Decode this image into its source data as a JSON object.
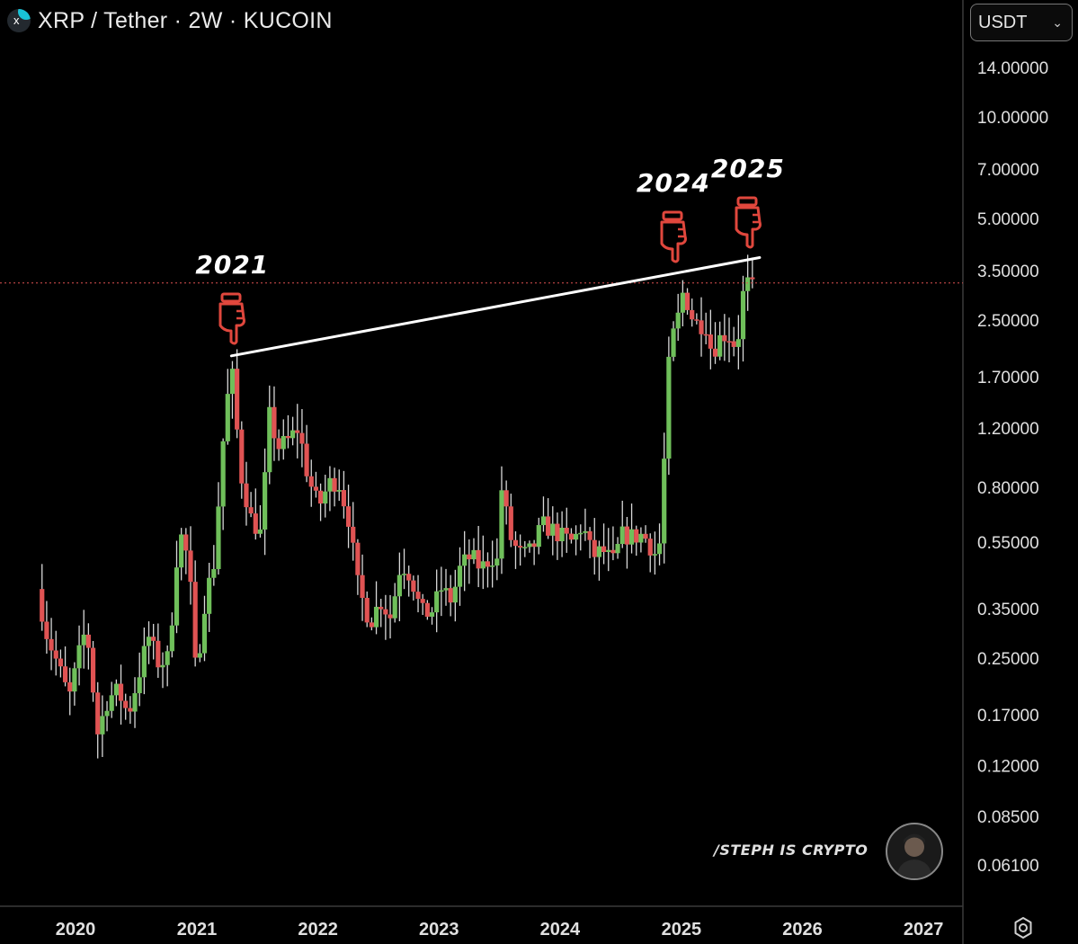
{
  "header": {
    "title": "XRP / Tether · 2W · KUCOIN",
    "currency": "USDT",
    "logo_icon": "xrp-logo-icon"
  },
  "chart_data": {
    "type": "candlestick",
    "symbol": "XRP / Tether",
    "interval": "2W",
    "exchange": "KUCOIN",
    "y_scale": "log",
    "ylim": [
      0.05,
      17.0
    ],
    "xlim": [
      "2019-09-15",
      "2027-06-01"
    ],
    "price_tick_labels": [
      "14.00000",
      "10.00000",
      "7.00000",
      "5.00000",
      "3.50000",
      "2.50000",
      "1.70000",
      "1.20000",
      "0.80000",
      "0.55000",
      "0.35000",
      "0.25000",
      "0.17000",
      "0.12000",
      "0.08500",
      "0.06100"
    ],
    "price_ticks": [
      14.0,
      10.0,
      7.0,
      5.0,
      3.5,
      2.5,
      1.7,
      1.2,
      0.8,
      0.55,
      0.35,
      0.25,
      0.17,
      0.12,
      0.085,
      0.061
    ],
    "time_ticks": [
      {
        "label": "2020",
        "date": "2020-01-01"
      },
      {
        "label": "2021",
        "date": "2021-01-01"
      },
      {
        "label": "2022",
        "date": "2022-01-01"
      },
      {
        "label": "2023",
        "date": "2023-01-01"
      },
      {
        "label": "2024",
        "date": "2024-01-01"
      },
      {
        "label": "2025",
        "date": "2025-01-01"
      },
      {
        "label": "2026",
        "date": "2026-01-01"
      },
      {
        "label": "2027",
        "date": "2027-01-01"
      }
    ],
    "anchor_closes": [
      [
        "2019-09-15",
        0.4
      ],
      [
        "2019-10-15",
        0.29
      ],
      [
        "2019-11-15",
        0.24
      ],
      [
        "2019-12-20",
        0.19
      ],
      [
        "2020-01-20",
        0.26
      ],
      [
        "2020-02-10",
        0.31
      ],
      [
        "2020-03-15",
        0.15
      ],
      [
        "2020-04-15",
        0.19
      ],
      [
        "2020-05-15",
        0.2
      ],
      [
        "2020-06-15",
        0.17
      ],
      [
        "2020-07-10",
        0.21
      ],
      [
        "2020-08-15",
        0.29
      ],
      [
        "2020-09-15",
        0.24
      ],
      [
        "2020-10-15",
        0.25
      ],
      [
        "2020-11-15",
        0.6
      ],
      [
        "2020-12-15",
        0.48
      ],
      [
        "2021-01-05",
        0.22
      ],
      [
        "2021-02-01",
        0.37
      ],
      [
        "2021-03-01",
        0.48
      ],
      [
        "2021-04-05",
        1.4
      ],
      [
        "2021-04-25",
        1.7
      ],
      [
        "2021-05-20",
        0.88
      ],
      [
        "2021-06-20",
        0.65
      ],
      [
        "2021-07-20",
        0.58
      ],
      [
        "2021-08-15",
        1.3
      ],
      [
        "2021-09-10",
        1.05
      ],
      [
        "2021-10-10",
        1.1
      ],
      [
        "2021-11-10",
        1.2
      ],
      [
        "2021-12-10",
        0.85
      ],
      [
        "2022-01-10",
        0.7
      ],
      [
        "2022-02-10",
        0.82
      ],
      [
        "2022-03-10",
        0.84
      ],
      [
        "2022-04-10",
        0.65
      ],
      [
        "2022-05-10",
        0.4
      ],
      [
        "2022-06-15",
        0.32
      ],
      [
        "2022-07-15",
        0.37
      ],
      [
        "2022-08-15",
        0.33
      ],
      [
        "2022-09-15",
        0.48
      ],
      [
        "2022-10-15",
        0.44
      ],
      [
        "2022-11-15",
        0.34
      ],
      [
        "2022-12-15",
        0.34
      ],
      [
        "2023-01-15",
        0.4
      ],
      [
        "2023-02-15",
        0.37
      ],
      [
        "2023-03-15",
        0.47
      ],
      [
        "2023-04-15",
        0.5
      ],
      [
        "2023-05-15",
        0.46
      ],
      [
        "2023-06-15",
        0.5
      ],
      [
        "2023-07-05",
        0.48
      ],
      [
        "2023-07-15",
        0.8
      ],
      [
        "2023-08-15",
        0.55
      ],
      [
        "2023-09-15",
        0.5
      ],
      [
        "2023-10-15",
        0.52
      ],
      [
        "2023-11-15",
        0.62
      ],
      [
        "2023-12-15",
        0.6
      ],
      [
        "2024-01-15",
        0.57
      ],
      [
        "2024-02-15",
        0.55
      ],
      [
        "2024-03-15",
        0.62
      ],
      [
        "2024-04-15",
        0.5
      ],
      [
        "2024-05-15",
        0.52
      ],
      [
        "2024-06-15",
        0.48
      ],
      [
        "2024-07-15",
        0.58
      ],
      [
        "2024-08-15",
        0.57
      ],
      [
        "2024-09-15",
        0.58
      ],
      [
        "2024-10-20",
        0.51
      ],
      [
        "2024-11-05",
        0.55
      ],
      [
        "2024-11-20",
        1.1
      ],
      [
        "2024-12-05",
        2.2
      ],
      [
        "2024-12-20",
        2.3
      ],
      [
        "2025-01-15",
        3.1
      ],
      [
        "2025-02-05",
        2.6
      ],
      [
        "2025-03-01",
        2.4
      ],
      [
        "2025-03-20",
        2.5
      ],
      [
        "2025-04-10",
        2.0
      ],
      [
        "2025-05-01",
        2.2
      ],
      [
        "2025-05-25",
        2.3
      ],
      [
        "2025-06-20",
        2.1
      ],
      [
        "2025-07-05",
        2.4
      ],
      [
        "2025-07-18",
        3.4
      ],
      [
        "2025-08-01",
        3.1
      ]
    ],
    "candle_interval_days": 14,
    "up_color": "#6fbf5a",
    "down_color": "#e05353",
    "trendline": {
      "from": {
        "date": "2021-04-15",
        "price": 1.96
      },
      "to": {
        "date": "2025-08-25",
        "price": 3.83
      },
      "color": "#ffffff"
    },
    "current_price_line": {
      "price": 3.22,
      "color": "#e05353",
      "style": "dotted"
    },
    "annotations": [
      {
        "text": "2021",
        "date": "2021-04-15",
        "icon": "pointing-down-hand-icon"
      },
      {
        "text": "2024",
        "date": "2024-12-05",
        "icon": "pointing-down-hand-icon"
      },
      {
        "text": "2025",
        "date": "2025-07-18",
        "icon": "pointing-down-hand-icon"
      }
    ]
  },
  "watermark": {
    "text": "/STEPH IS CRYPTO",
    "avatar_icon": "avatar-icon"
  },
  "footer": {
    "settings_icon": "settings-gear-icon"
  },
  "colors": {
    "background": "#000000",
    "text": "#e6e6e6",
    "axis_border": "#3a3a3a",
    "accent": "#e05353"
  }
}
